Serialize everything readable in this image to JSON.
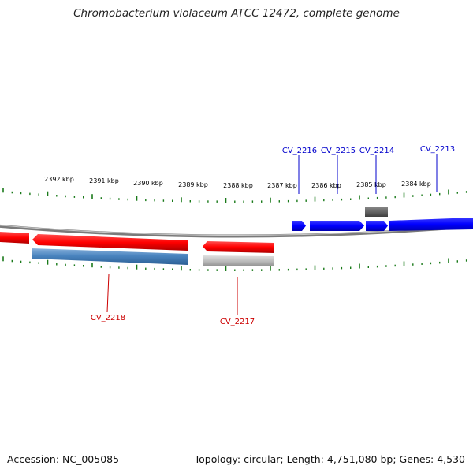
{
  "title": "Chromobacterium violaceum ATCC 12472, complete genome",
  "footer": {
    "accession": "Accession: NC_005085",
    "summary": "Topology: circular; Length: 4,751,080 bp; Genes: 4,530"
  },
  "colors": {
    "forward_gene": "#0000ff",
    "reverse_gene": "#ff0000",
    "backbone": "#808080",
    "ticks": "#1a7a1a",
    "forward_feature": "#666666",
    "reverse_cds": "#4a84bf",
    "reverse_feature": "#bdbdbd"
  },
  "kbp_ticks": [
    "2392 kbp",
    "2391 kbp",
    "2390 kbp",
    "2389 kbp",
    "2388 kbp",
    "2387 kbp",
    "2386 kbp",
    "2385 kbp",
    "2384 kbp"
  ],
  "forward_labels": [
    "CV_2216",
    "CV_2215",
    "CV_2214",
    "CV_2213"
  ],
  "reverse_labels": [
    "CV_2218",
    "CV_2217"
  ]
}
